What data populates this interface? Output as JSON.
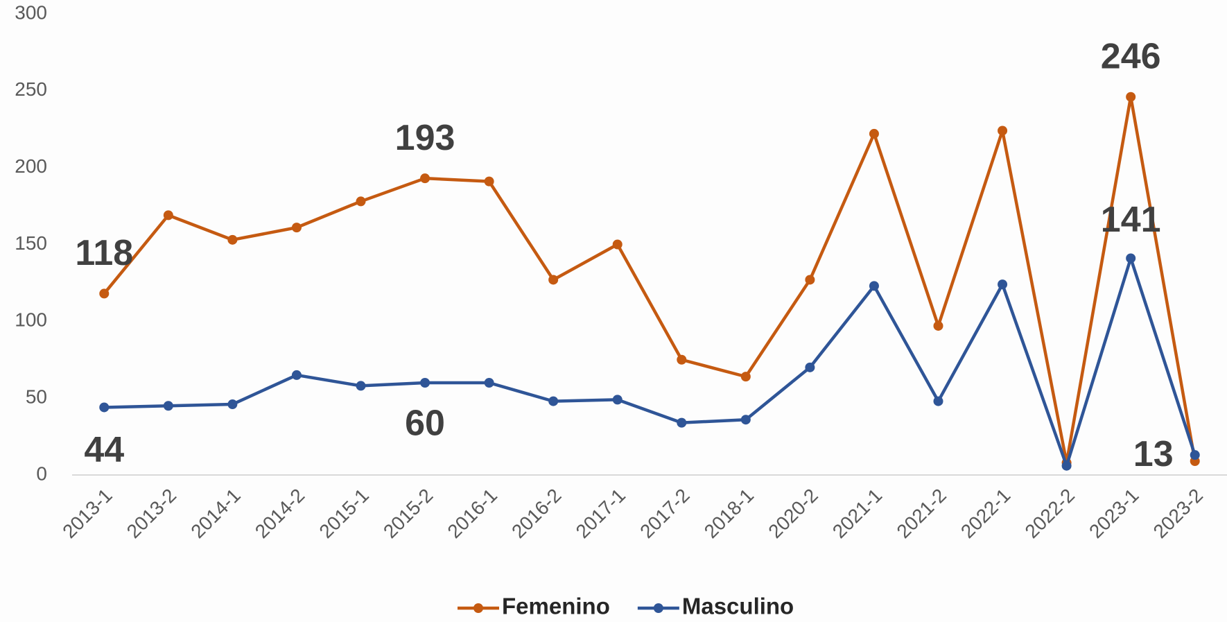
{
  "chart_data": {
    "type": "line",
    "categories": [
      "2013-1",
      "2013-2",
      "2014-1",
      "2014-2",
      "2015-1",
      "2015-2",
      "2016-1",
      "2016-2",
      "2017-1",
      "2017-2",
      "2018-1",
      "2020-2",
      "2021-1",
      "2021-2",
      "2022-1",
      "2022-2",
      "2023-1",
      "2023-2"
    ],
    "series": [
      {
        "name": "Femenino",
        "color": "#c55a11",
        "values": [
          118,
          169,
          153,
          161,
          178,
          193,
          191,
          127,
          150,
          75,
          64,
          127,
          222,
          97,
          224,
          8,
          246,
          9
        ],
        "value_labels": [
          "118",
          null,
          null,
          null,
          null,
          "193",
          null,
          null,
          null,
          null,
          null,
          null,
          null,
          null,
          null,
          null,
          "246",
          null
        ]
      },
      {
        "name": "Masculino",
        "color": "#2f5597",
        "values": [
          44,
          45,
          46,
          65,
          58,
          60,
          60,
          48,
          49,
          34,
          36,
          70,
          123,
          48,
          124,
          6,
          141,
          13
        ],
        "value_labels": [
          "44",
          null,
          null,
          null,
          null,
          "60",
          null,
          null,
          null,
          null,
          null,
          null,
          null,
          null,
          null,
          null,
          "141",
          "13"
        ]
      }
    ],
    "ylim": [
      0,
      300
    ],
    "yticks": [
      0,
      50,
      100,
      150,
      200,
      250,
      300
    ],
    "grid": false,
    "legend": "bottom"
  }
}
